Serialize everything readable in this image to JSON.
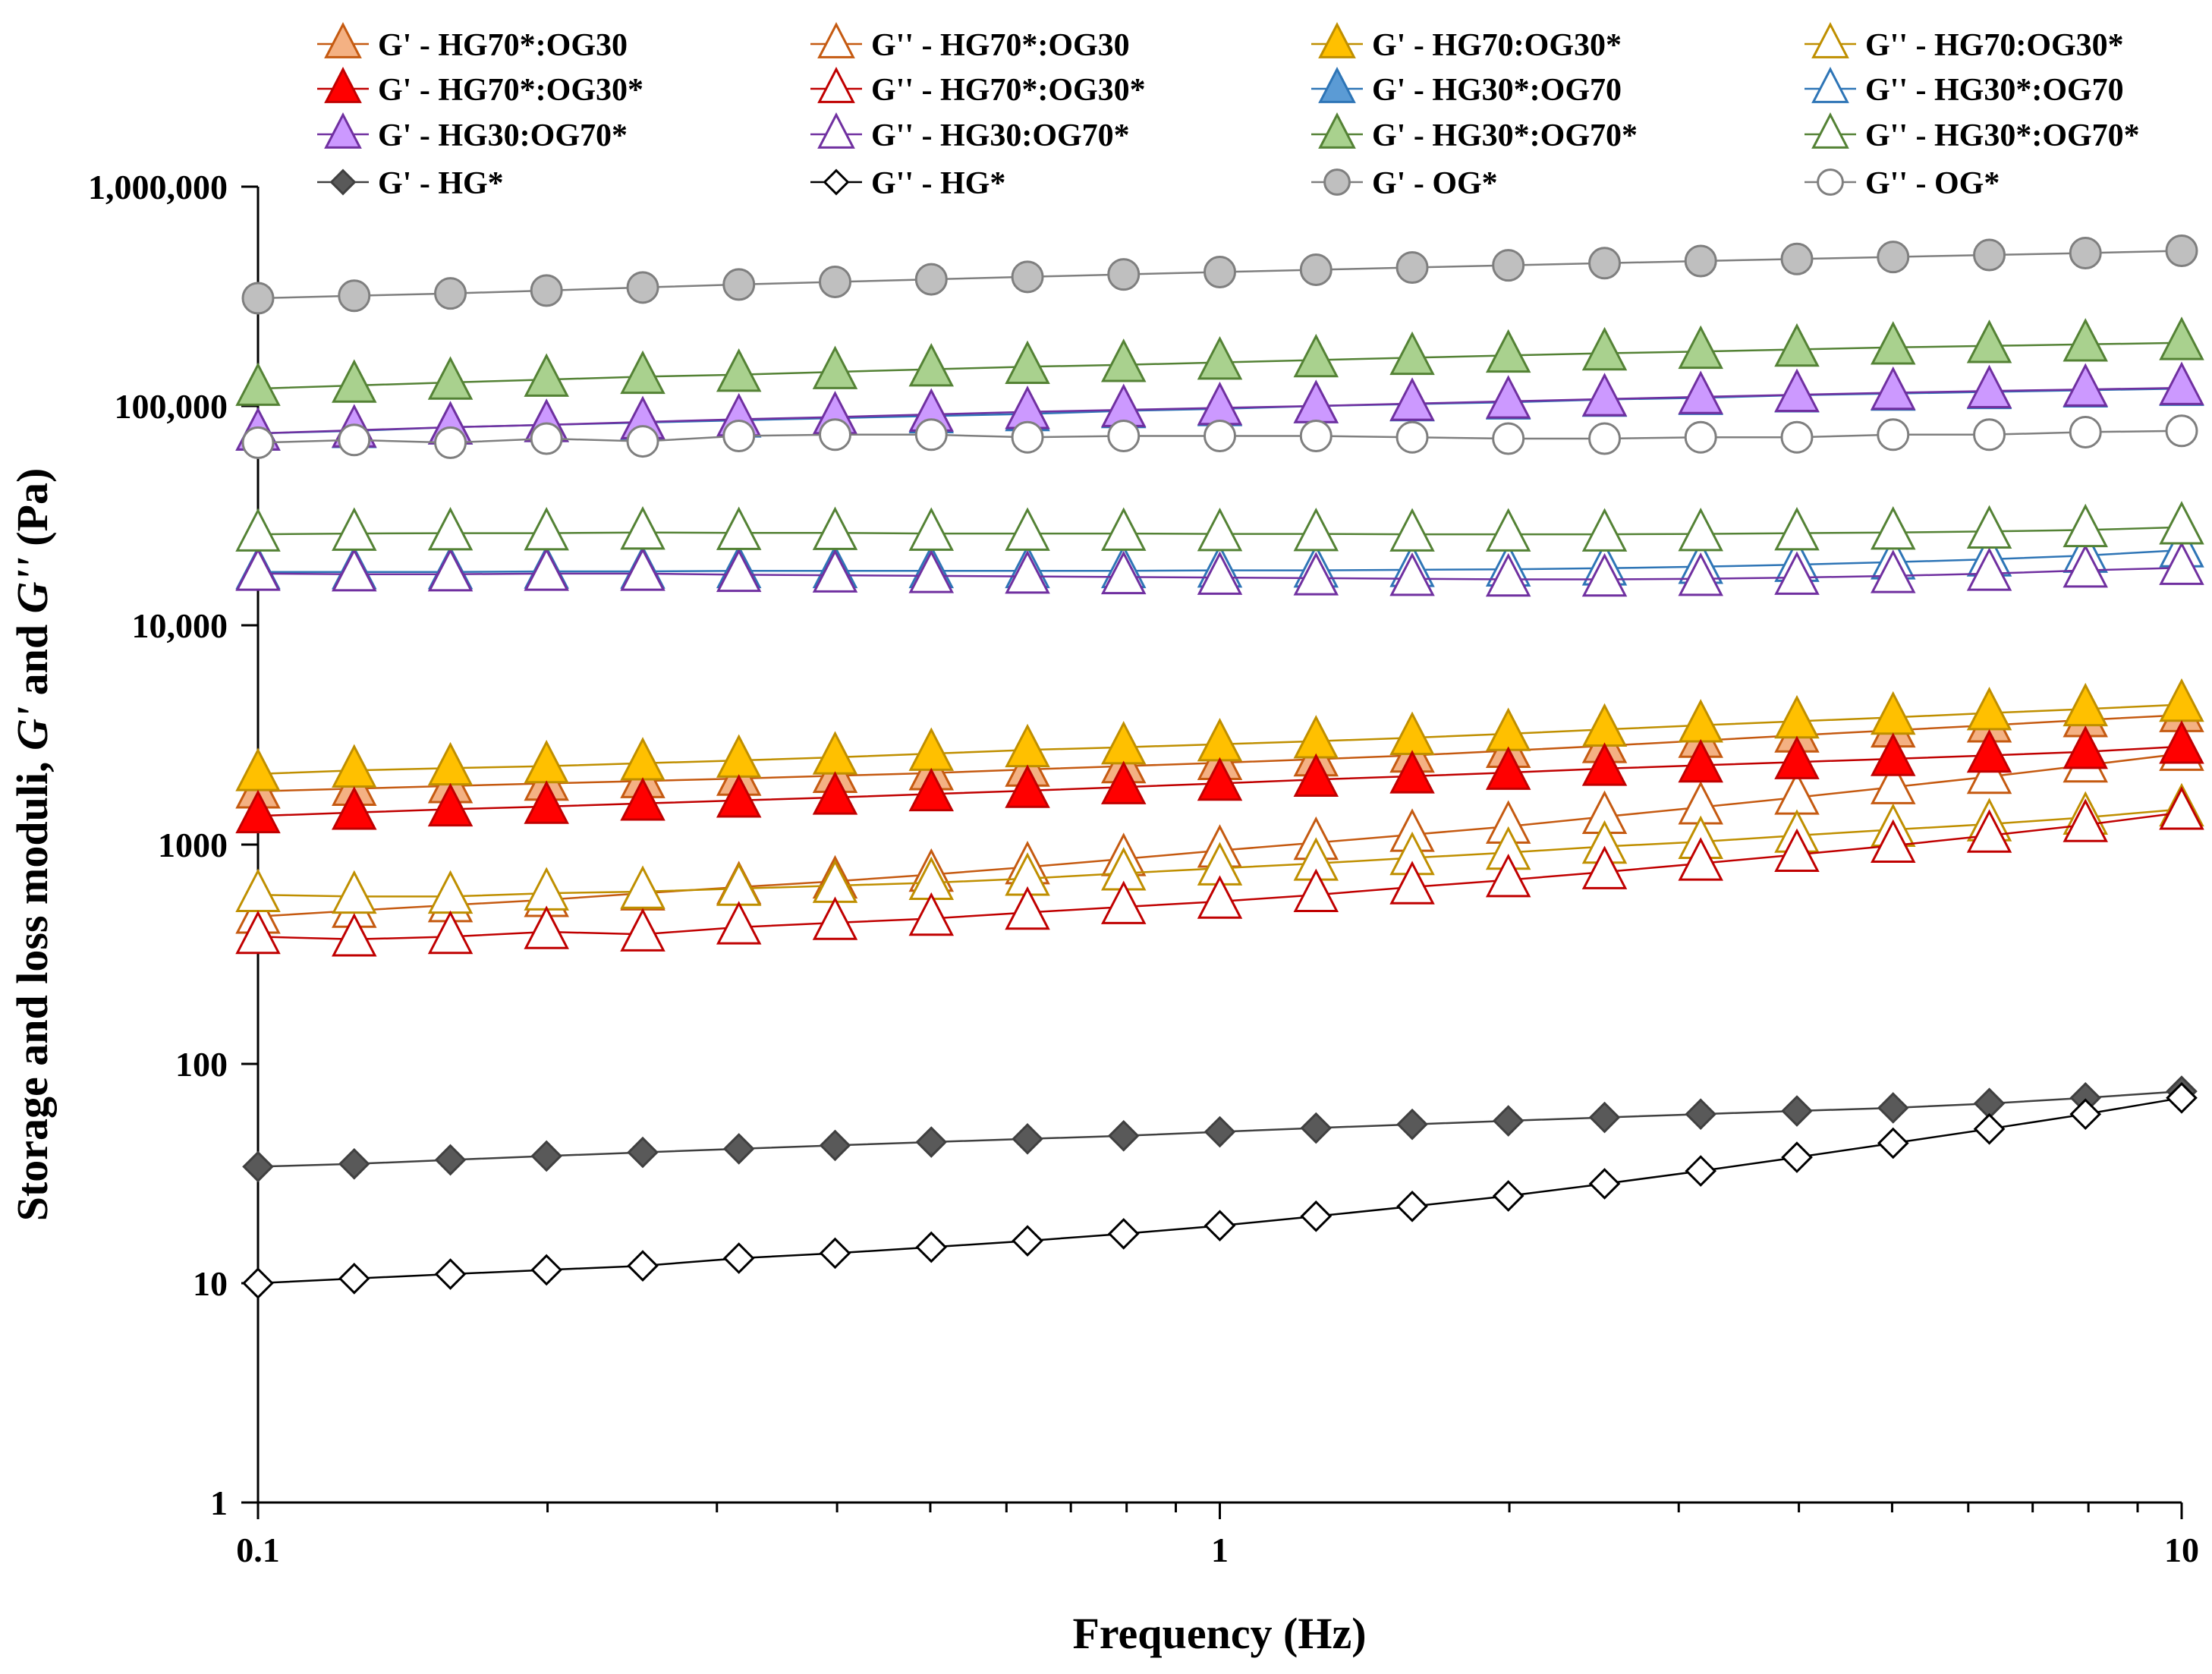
{
  "chart_data": {
    "type": "line",
    "title": "",
    "xlabel": "Frequency (Hz)",
    "ylabel": "Storage and loss moduli, G' and G'' (Pa)",
    "ylabel_parts": [
      "Storage and loss moduli, ",
      "G'",
      " and ",
      "G''",
      " (Pa)"
    ],
    "xscale": "log",
    "yscale": "log",
    "xlim": [
      0.1,
      10
    ],
    "ylim": [
      1,
      1000000
    ],
    "x_tick_labels": [
      "0.1",
      "1",
      "10"
    ],
    "y_tick_labels": [
      "1",
      "10",
      "100",
      "1000",
      "10,000",
      "100,000",
      "1,000,000"
    ],
    "grid": false,
    "legend_position": "top",
    "x": [
      0.1,
      0.1259,
      0.1585,
      0.1995,
      0.2512,
      0.3162,
      0.3981,
      0.5012,
      0.631,
      0.7943,
      1,
      1.259,
      1.585,
      1.995,
      2.512,
      3.162,
      3.981,
      5.012,
      6.31,
      7.943,
      10
    ],
    "series": [
      {
        "name": "G' - HG70*:OG30",
        "marker": "triangle",
        "filled": true,
        "color": "#c55a11",
        "fill": "#f4b183",
        "values": [
          1750,
          1800,
          1850,
          1900,
          1950,
          2000,
          2060,
          2120,
          2200,
          2280,
          2360,
          2450,
          2550,
          2680,
          2820,
          2980,
          3150,
          3320,
          3500,
          3700,
          3900
        ]
      },
      {
        "name": "G'' - HG70*:OG30",
        "marker": "triangle",
        "filled": false,
        "color": "#c55a11",
        "fill": "#ffffff",
        "values": [
          470,
          500,
          530,
          560,
          600,
          640,
          680,
          730,
          790,
          860,
          940,
          1020,
          1110,
          1210,
          1340,
          1480,
          1640,
          1830,
          2040,
          2300,
          2600
        ]
      },
      {
        "name": "G' - HG70:OG30*",
        "marker": "triangle",
        "filled": true,
        "color": "#bf8f00",
        "fill": "#ffc000",
        "values": [
          2100,
          2180,
          2230,
          2280,
          2350,
          2420,
          2500,
          2600,
          2700,
          2780,
          2870,
          2960,
          3070,
          3200,
          3350,
          3500,
          3650,
          3800,
          3980,
          4150,
          4350
        ]
      },
      {
        "name": "G'' - HG70:OG30*",
        "marker": "triangle",
        "filled": false,
        "color": "#bf8f00",
        "fill": "#ffffff",
        "values": [
          590,
          580,
          580,
          600,
          610,
          630,
          650,
          670,
          700,
          740,
          780,
          820,
          870,
          920,
          980,
          1030,
          1100,
          1170,
          1240,
          1330,
          1450
        ]
      },
      {
        "name": "G' - HG70*:OG30*",
        "marker": "triangle",
        "filled": true,
        "color": "#c00000",
        "fill": "#ff0000",
        "values": [
          1350,
          1400,
          1450,
          1490,
          1540,
          1590,
          1640,
          1700,
          1760,
          1830,
          1900,
          1980,
          2050,
          2130,
          2220,
          2300,
          2380,
          2460,
          2550,
          2650,
          2800
        ]
      },
      {
        "name": "G'' - HG70*:OG30*",
        "marker": "triangle",
        "filled": false,
        "color": "#c00000",
        "fill": "#ffffff",
        "values": [
          380,
          370,
          380,
          400,
          390,
          420,
          440,
          460,
          490,
          520,
          550,
          590,
          640,
          690,
          750,
          820,
          900,
          990,
          1100,
          1230,
          1400
        ]
      },
      {
        "name": "G' - HG30*:OG70",
        "marker": "triangle",
        "filled": true,
        "color": "#2e75b6",
        "fill": "#5b9bd5",
        "values": [
          75000,
          77000,
          80000,
          82000,
          84000,
          86000,
          88000,
          90000,
          92000,
          95000,
          97000,
          100000,
          102000,
          104000,
          107000,
          109000,
          112000,
          114000,
          116000,
          118000,
          120000
        ]
      },
      {
        "name": "G'' - HG30*:OG70",
        "marker": "triangle",
        "filled": false,
        "color": "#2e75b6",
        "fill": "#ffffff",
        "values": [
          17500,
          17500,
          17500,
          17600,
          17600,
          17700,
          17700,
          17700,
          17700,
          17700,
          17800,
          17800,
          17900,
          18000,
          18200,
          18500,
          18900,
          19400,
          20000,
          20800,
          22000
        ]
      },
      {
        "name": "G' - HG30:OG70*",
        "marker": "triangle",
        "filled": true,
        "color": "#7030a0",
        "fill": "#cc99ff",
        "values": [
          75000,
          77500,
          80000,
          82000,
          84500,
          87000,
          89000,
          91500,
          94000,
          96000,
          98000,
          100000,
          102500,
          105000,
          107500,
          110000,
          112500,
          115000,
          117000,
          119000,
          121000
        ]
      },
      {
        "name": "G'' - HG30:OG70*",
        "marker": "triangle",
        "filled": false,
        "color": "#7030a0",
        "fill": "#ffffff",
        "values": [
          17200,
          17100,
          17100,
          17200,
          17200,
          17000,
          16900,
          16800,
          16700,
          16600,
          16500,
          16400,
          16300,
          16200,
          16200,
          16300,
          16500,
          16800,
          17200,
          17800,
          18300
        ]
      },
      {
        "name": "G' - HG30*:OG70*",
        "marker": "triangle",
        "filled": true,
        "color": "#548235",
        "fill": "#a9d18e",
        "values": [
          120000,
          124000,
          128000,
          132000,
          136000,
          139000,
          143000,
          147000,
          151000,
          154000,
          158000,
          162000,
          166000,
          170000,
          174000,
          177000,
          181000,
          185000,
          188000,
          191000,
          194000
        ]
      },
      {
        "name": "G'' - HG30*:OG70*",
        "marker": "triangle",
        "filled": false,
        "color": "#548235",
        "fill": "#ffffff",
        "values": [
          26000,
          26200,
          26300,
          26300,
          26500,
          26400,
          26400,
          26200,
          26200,
          26200,
          26100,
          26100,
          26000,
          26000,
          26000,
          26100,
          26300,
          26500,
          26800,
          27200,
          28000
        ]
      },
      {
        "name": "G' - HG*",
        "marker": "diamond",
        "filled": true,
        "color": "#404040",
        "fill": "#595959",
        "values": [
          34,
          35,
          36.5,
          38,
          39.5,
          41,
          42.5,
          44,
          45.5,
          47,
          49,
          51,
          53,
          55,
          57,
          59,
          61,
          63,
          66,
          70,
          75
        ]
      },
      {
        "name": "G'' - HG*",
        "marker": "diamond",
        "filled": false,
        "color": "#000000",
        "fill": "#ffffff",
        "values": [
          10,
          10.5,
          11,
          11.5,
          12,
          13,
          13.7,
          14.6,
          15.6,
          16.8,
          18.3,
          20.2,
          22.4,
          25,
          28.4,
          32.5,
          37.5,
          43.5,
          50.5,
          59,
          70
        ]
      },
      {
        "name": "G' - OG*",
        "marker": "circle",
        "filled": true,
        "color": "#7f7f7f",
        "fill": "#bfbfbf",
        "values": [
          310000,
          318000,
          326000,
          336000,
          347000,
          358000,
          368000,
          378000,
          388000,
          398000,
          408000,
          418000,
          428000,
          438000,
          448000,
          458000,
          468000,
          478000,
          488000,
          498000,
          510000
        ]
      },
      {
        "name": "G'' - OG*",
        "marker": "circle",
        "filled": false,
        "color": "#7f7f7f",
        "fill": "#ffffff",
        "values": [
          68000,
          70000,
          68000,
          71000,
          69000,
          73000,
          74000,
          74000,
          72000,
          73000,
          73000,
          73000,
          72000,
          71000,
          71000,
          72000,
          72000,
          74000,
          74000,
          76000,
          77000
        ]
      }
    ]
  }
}
